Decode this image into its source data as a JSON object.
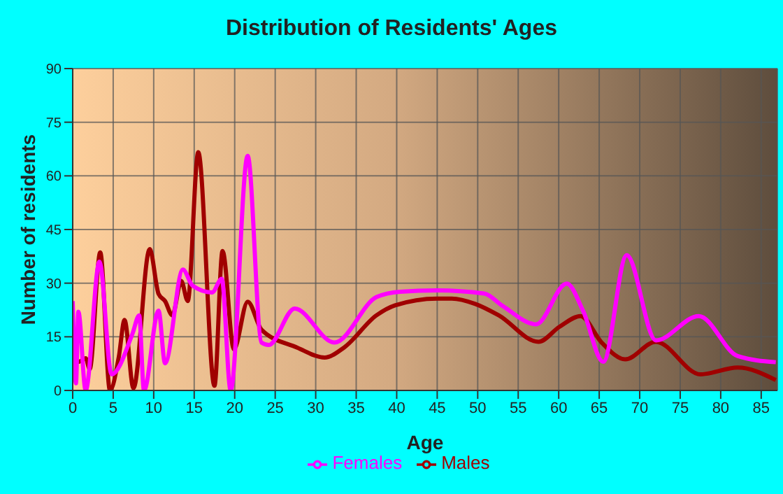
{
  "chart_data": {
    "type": "line",
    "title": "Distribution of Residents' Ages",
    "xlabel": "Age",
    "ylabel": "Number of residents",
    "xlim": [
      0,
      87
    ],
    "xticks": [
      0,
      5,
      10,
      15,
      20,
      25,
      30,
      35,
      40,
      45,
      50,
      55,
      60,
      65,
      70,
      75,
      80,
      85
    ],
    "ylim": [
      0,
      90
    ],
    "yticks": [
      0,
      15,
      30,
      45,
      60,
      75,
      90
    ],
    "grid": true,
    "legend": "bottom",
    "marker": "none",
    "line_style": "solid",
    "series": [
      {
        "name": "Males",
        "color": "#a00000",
        "x": [
          0,
          0.7,
          1.6,
          2.1,
          3.4,
          4.6,
          5.7,
          6.4,
          7.5,
          9.5,
          10.6,
          11.4,
          12.3,
          13.4,
          14.2,
          15.5,
          17.5,
          18.5,
          19.9,
          21.6,
          23.3,
          27.7,
          31.1,
          33.5,
          37.5,
          39.8,
          45,
          46.8,
          49.7,
          52.6,
          57.5,
          60.1,
          62.7,
          65.3,
          68.2,
          72,
          77.5,
          82.1,
          86.8
        ],
        "values": [
          8,
          8,
          9,
          6,
          38.6,
          0,
          9.5,
          19.7,
          0.6,
          39.5,
          27,
          25,
          21,
          30.6,
          25,
          66.6,
          1.3,
          39,
          11.5,
          24.8,
          17,
          12,
          9.2,
          12,
          21,
          23.8,
          25.7,
          25.7,
          24.2,
          21,
          13.6,
          17.8,
          20.8,
          13.4,
          8.7,
          13.6,
          4.5,
          6.4,
          2.9
        ]
      },
      {
        "name": "Females",
        "color": "#ff00ff",
        "x": [
          0,
          0.4,
          0.7,
          1.6,
          3.3,
          4.8,
          7.4,
          8.2,
          8.8,
          10.6,
          11.4,
          13.6,
          14.8,
          17.2,
          18.4,
          19.5,
          21.6,
          23.3,
          24.2,
          27.4,
          32.3,
          37.5,
          40.4,
          45,
          50.8,
          53.1,
          57.2,
          61,
          63,
          65.5,
          68.4,
          72,
          77.3,
          82.1,
          86.8
        ],
        "values": [
          25,
          2,
          22,
          0,
          36,
          4.5,
          16,
          21,
          0,
          22.3,
          7.6,
          33.8,
          29.3,
          27.4,
          31.2,
          0,
          65.6,
          13.4,
          12.7,
          22.9,
          13.4,
          26.1,
          27.6,
          28,
          27.1,
          23.6,
          18.5,
          29.9,
          22.3,
          8,
          37.8,
          14,
          20.8,
          9.6,
          7.9
        ]
      }
    ]
  }
}
